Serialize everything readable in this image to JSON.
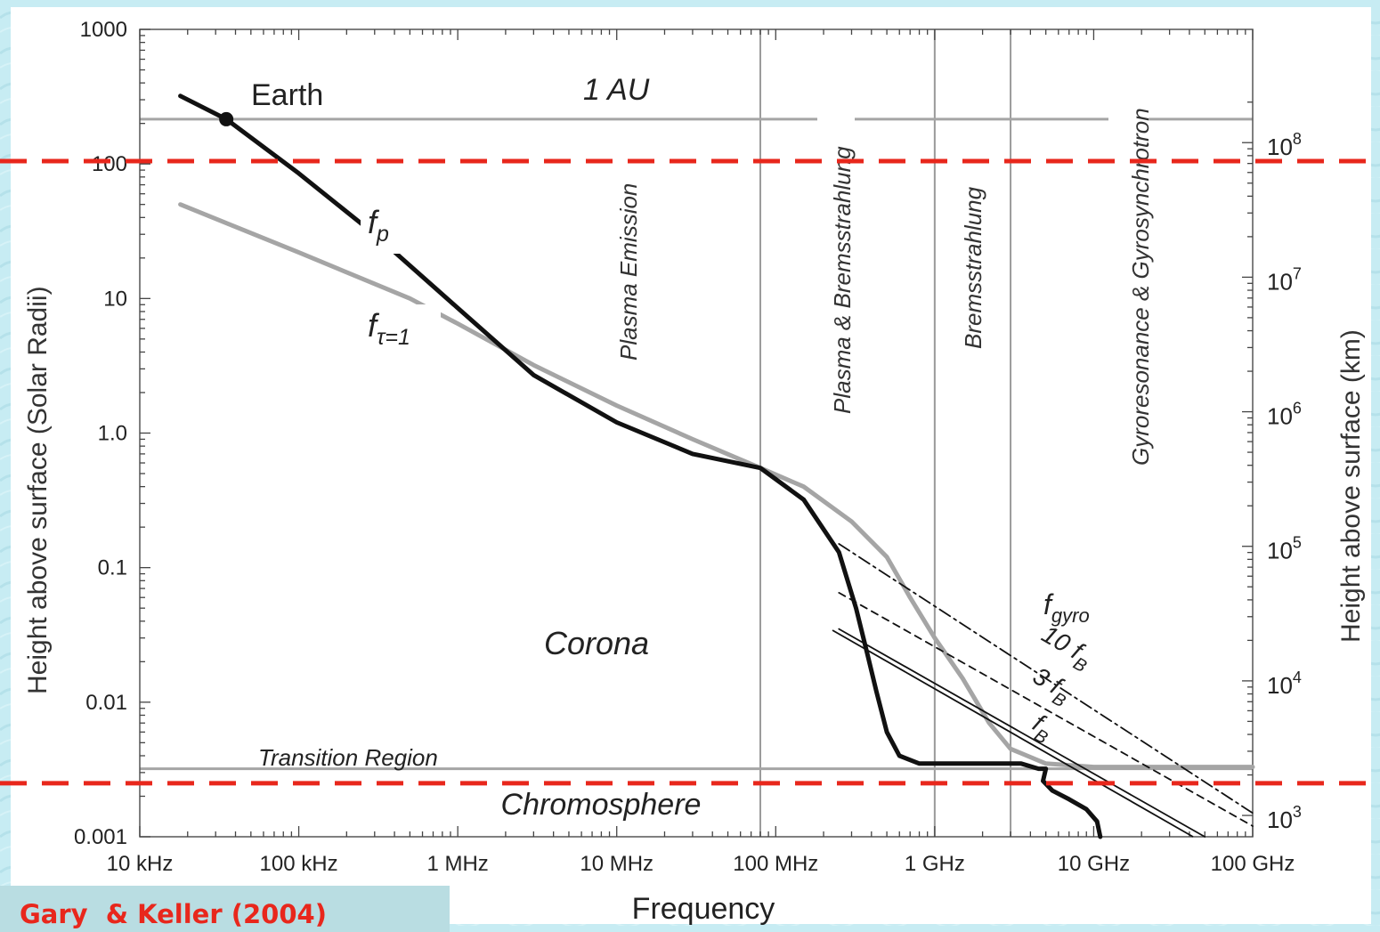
{
  "chart_data": {
    "type": "line",
    "title": "",
    "xlabel": "Frequency",
    "ylabel_left": "Height above surface (Solar Radii)",
    "ylabel_right": "Height above surface (km)",
    "x_scale": "log",
    "y_scale": "log",
    "x_unit": "Hz",
    "xlim": [
      10000,
      100000000000
    ],
    "ylim": [
      0.001,
      1000
    ],
    "x_ticks": [
      {
        "value": 10000,
        "label": "10 kHz"
      },
      {
        "value": 100000,
        "label": "100 kHz"
      },
      {
        "value": 1000000,
        "label": "1 MHz"
      },
      {
        "value": 10000000,
        "label": "10 MHz"
      },
      {
        "value": 100000000,
        "label": "100 MHz"
      },
      {
        "value": 1000000000,
        "label": "1 GHz"
      },
      {
        "value": 10000000000,
        "label": "10 GHz"
      },
      {
        "value": 100000000000,
        "label": "100 GHz"
      }
    ],
    "y_ticks_left": [
      {
        "value": 1000,
        "label": "1000"
      },
      {
        "value": 100,
        "label": "100"
      },
      {
        "value": 10,
        "label": "10"
      },
      {
        "value": 1,
        "label": "1.0"
      },
      {
        "value": 0.1,
        "label": "0.1"
      },
      {
        "value": 0.01,
        "label": "0.01"
      },
      {
        "value": 0.001,
        "label": "0.001"
      }
    ],
    "y_ticks_right": [
      {
        "value": 0.00144,
        "base": "10",
        "exp": "3"
      },
      {
        "value": 0.0144,
        "base": "10",
        "exp": "4"
      },
      {
        "value": 0.144,
        "base": "10",
        "exp": "5"
      },
      {
        "value": 1.44,
        "base": "10",
        "exp": "6"
      },
      {
        "value": 14.4,
        "base": "10",
        "exp": "7"
      },
      {
        "value": 144,
        "base": "10",
        "exp": "8"
      }
    ],
    "horizontal_lines": [
      {
        "id": "au",
        "y": 215,
        "label": "1 AU",
        "color": "#a5a5a5"
      },
      {
        "id": "transition",
        "y": 0.0032,
        "label": "Transition Region",
        "color": "#a5a5a5"
      }
    ],
    "vertical_lines": [
      {
        "x": 80000000,
        "color": "#9a9a9a"
      },
      {
        "x": 1000000000,
        "color": "#9a9a9a"
      },
      {
        "x": 3000000000,
        "color": "#9a9a9a"
      }
    ],
    "dashed_red_lines": [
      {
        "y": 105,
        "color": "#e8271c"
      },
      {
        "y": 0.0025,
        "color": "#e8271c"
      }
    ],
    "earth_point": {
      "x": 35000,
      "y": 215,
      "label": "Earth"
    },
    "series": [
      {
        "id": "fp",
        "color": "#111111",
        "width": 5,
        "label_main": "f",
        "label_sub": "p",
        "points": [
          [
            18000,
            320
          ],
          [
            35000,
            215
          ],
          [
            100000,
            85
          ],
          [
            300000,
            30
          ],
          [
            1000000,
            8.5
          ],
          [
            3000000,
            2.7
          ],
          [
            10000000,
            1.2
          ],
          [
            30000000,
            0.7
          ],
          [
            80000000,
            0.55
          ],
          [
            150000000,
            0.32
          ],
          [
            250000000,
            0.13
          ],
          [
            320000000,
            0.05
          ],
          [
            380000000,
            0.022
          ],
          [
            430000000,
            0.012
          ],
          [
            500000000,
            0.006
          ],
          [
            600000000,
            0.004
          ],
          [
            800000000,
            0.0035
          ],
          [
            1500000000,
            0.0035
          ],
          [
            3500000000,
            0.0035
          ],
          [
            4500000000,
            0.0032
          ],
          [
            5000000000,
            0.0032
          ],
          [
            4800000000,
            0.0026
          ],
          [
            5500000000,
            0.0022
          ],
          [
            7000000000,
            0.0019
          ],
          [
            9000000000,
            0.0016
          ],
          [
            10500000000,
            0.0013
          ],
          [
            11000000000,
            0.001
          ]
        ]
      },
      {
        "id": "ftau",
        "color": "#a5a5a5",
        "width": 5,
        "label_main": "f",
        "label_sub": "τ=1",
        "points": [
          [
            18000,
            50
          ],
          [
            100000,
            22
          ],
          [
            500000,
            10
          ],
          [
            1000000,
            6.5
          ],
          [
            3000000,
            3.2
          ],
          [
            10000000,
            1.6
          ],
          [
            30000000,
            0.9
          ],
          [
            80000000,
            0.55
          ],
          [
            150000000,
            0.4
          ],
          [
            300000000,
            0.22
          ],
          [
            500000000,
            0.12
          ],
          [
            700000000,
            0.06
          ],
          [
            1000000000,
            0.03
          ],
          [
            1500000000,
            0.015
          ],
          [
            2200000000,
            0.007
          ],
          [
            3000000000,
            0.0045
          ],
          [
            5000000000,
            0.0035
          ],
          [
            10000000000,
            0.0033
          ],
          [
            100000000000,
            0.0033
          ]
        ]
      },
      {
        "id": "fgyro",
        "color": "#111111",
        "width": 1.8,
        "dash": "14,5,3,5",
        "label_main": "f",
        "label_sub": "gyro",
        "points": [
          [
            250000000,
            0.15
          ],
          [
            100000000000,
            0.0015
          ]
        ]
      },
      {
        "id": "10fB",
        "color": "#111111",
        "width": 1.8,
        "dash": "8,6",
        "label_main": "10 f",
        "label_sub": "B",
        "points": [
          [
            250000000,
            0.065
          ],
          [
            100000000000,
            0.0012
          ]
        ]
      },
      {
        "id": "3fB",
        "color": "#111111",
        "width": 1.8,
        "label_main": "3 f",
        "label_sub": "B",
        "points": [
          [
            250000000,
            0.035
          ],
          [
            50000000000,
            0.001
          ]
        ]
      },
      {
        "id": "fB",
        "color": "#111111",
        "width": 1.8,
        "label_main": "f",
        "label_sub": "B",
        "points": []
      }
    ],
    "region_labels": [
      {
        "id": "corona",
        "text": "Corona"
      },
      {
        "id": "chromosphere",
        "text": "Chromosphere"
      },
      {
        "id": "earth",
        "text": "Earth"
      },
      {
        "id": "au",
        "text": "1 AU"
      },
      {
        "id": "transition",
        "text": "Transition Region"
      }
    ],
    "vertical_labels": [
      {
        "id": "plasma-emission",
        "text": "Plasma Emission"
      },
      {
        "id": "plasma-brems",
        "text": "Plasma & Bremsstrahlung"
      },
      {
        "id": "bremsstrahlung",
        "text": "Bremsstrahlung"
      },
      {
        "id": "gyro",
        "text": "Gyroresonance & Gyrosynchrotron"
      }
    ],
    "grid": false,
    "legend": "none"
  },
  "citation": "Gary  & Keller (2004)"
}
